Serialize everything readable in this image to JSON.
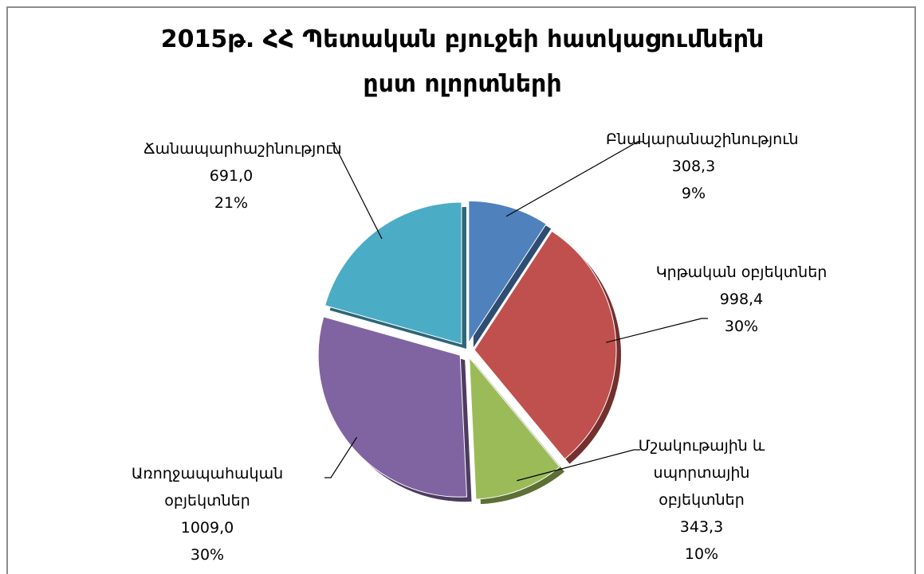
{
  "chart_data": {
    "type": "pie",
    "title": "2015թ. ՀՀ Պետական բյուջեի հատկացումներն ըստ ոլորտների",
    "categories": [
      "Բնակարանաշինություն",
      "Կրթական օբյեկտներ",
      "Մշակութային և սպորտային օբյեկտներ",
      "Առողջապահական օբյեկտներ",
      "Ճանապարհաշինություն"
    ],
    "values": [
      308.3,
      998.4,
      343.3,
      1009.0,
      691.0
    ],
    "value_labels": [
      "308,3",
      "998,4",
      "343,3",
      "1009,0",
      "691,0"
    ],
    "percentages": [
      9,
      30,
      10,
      30,
      21
    ],
    "percent_labels": [
      "9%",
      "30%",
      "10%",
      "30%",
      "21%"
    ],
    "colors": [
      "#4f81bd",
      "#c0504d",
      "#9bbb59",
      "#8064a2",
      "#4bacc6"
    ]
  }
}
